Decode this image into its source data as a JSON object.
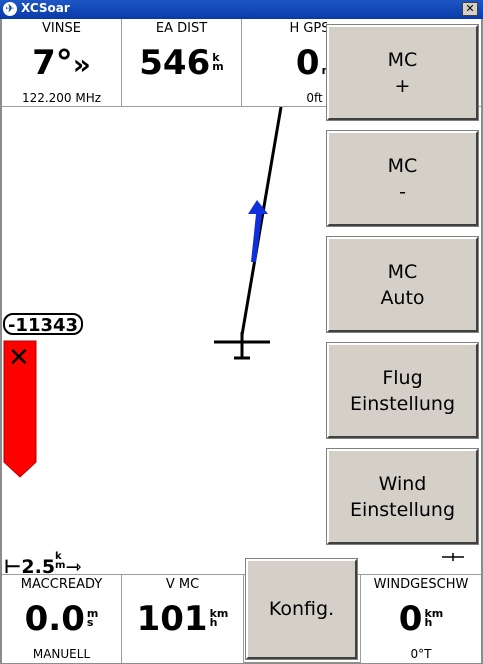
{
  "window": {
    "title": "XCSoar",
    "close_glyph": "✕"
  },
  "top_infoboxes": [
    {
      "label": "VINSE",
      "value": "7°",
      "unit_top": "",
      "unit_bottom": "",
      "extra": "»",
      "comment": "122.200 MHz"
    },
    {
      "label": "EA DIST",
      "value": "546",
      "unit_top": "k",
      "unit_bottom": "m",
      "extra": "",
      "comment": ""
    },
    {
      "label": "H GPS",
      "value": "0",
      "unit_top": "",
      "unit_bottom": "m",
      "extra": "",
      "comment": "0ft"
    }
  ],
  "bottom_infoboxes": [
    {
      "label": "MACCREADY",
      "value": "0.0",
      "unit_top": "m",
      "unit_bottom": "s",
      "comment": "MANUELL"
    },
    {
      "label": "V MC",
      "value": "101",
      "unit_top": "km",
      "unit_bottom": "h",
      "comment": ""
    },
    {
      "label": "WINDGESCHW",
      "value": "0",
      "unit_top": "km",
      "unit_bottom": "h",
      "comment": "0°T"
    }
  ],
  "menu": {
    "buttons": [
      {
        "line1": "MC",
        "line2": "+"
      },
      {
        "line1": "MC",
        "line2": "-"
      },
      {
        "line1": "MC",
        "line2": "Auto"
      },
      {
        "line1": "Flug",
        "line2": "Einstellung"
      },
      {
        "line1": "Wind",
        "line2": "Einstellung"
      }
    ],
    "config_label": "Konfig."
  },
  "vario": {
    "value": "-11343",
    "bar_color": "#ff0000"
  },
  "scale": {
    "value": "2.5",
    "unit_top": "k",
    "unit_bottom": "m"
  },
  "colors": {
    "wind_arrow": "#1030e0",
    "track_line": "#000000",
    "bar": "#ff0000"
  }
}
